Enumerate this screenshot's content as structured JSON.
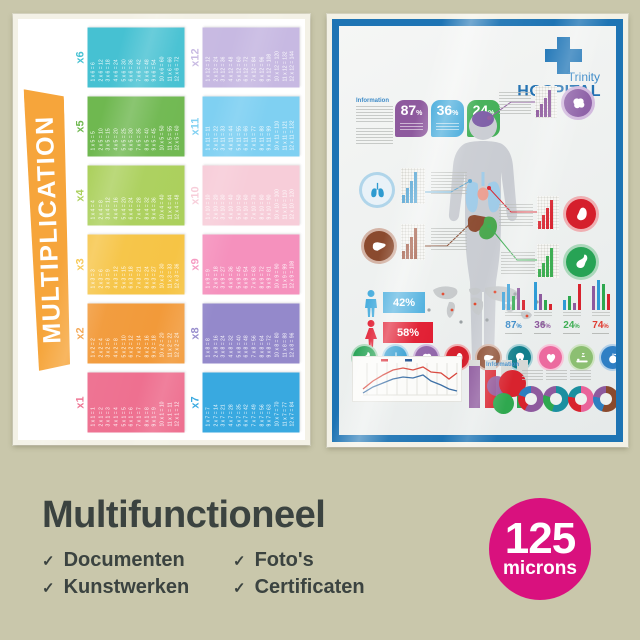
{
  "colors": {
    "background": "#c9c7ab",
    "text_dark": "#3b4340",
    "badge_pink": "#d9117e",
    "ribbon_orange": "#f6a53b",
    "hospital_blue": "#1e74b4"
  },
  "left_poster": {
    "title": "MULTIPLICATION",
    "tables": [
      {
        "label": "x1",
        "color": "#ee7090",
        "entries": [
          "1 x 1 = 1",
          "2 x 1 = 2",
          "3 x 1 = 3",
          "4 x 1 = 4",
          "5 x 1 = 5",
          "6 x 1 = 6",
          "7 x 1 = 7",
          "8 x 1 = 8",
          "9 x 1 = 9",
          "10 x 1 = 10",
          "11 x 1 = 11",
          "12 x 1 = 12"
        ]
      },
      {
        "label": "x2",
        "color": "#f29a3a",
        "entries": [
          "1 x 2 = 2",
          "2 x 2 = 4",
          "3 x 2 = 6",
          "4 x 2 = 8",
          "5 x 2 = 10",
          "6 x 2 = 12",
          "7 x 2 = 14",
          "8 x 2 = 16",
          "9 x 2 = 18",
          "10 x 2 = 20",
          "11 x 2 = 22",
          "12 x 2 = 24"
        ]
      },
      {
        "label": "x3",
        "color": "#f6c445",
        "entries": [
          "1 x 3 = 3",
          "2 x 3 = 6",
          "3 x 3 = 9",
          "4 x 3 = 12",
          "5 x 3 = 15",
          "6 x 3 = 18",
          "7 x 3 = 21",
          "8 x 3 = 24",
          "9 x 3 = 27",
          "10 x 3 = 30",
          "11 x 3 = 33",
          "12 x 3 = 36"
        ]
      },
      {
        "label": "x4",
        "color": "#abd05c",
        "entries": [
          "1 x 4 = 4",
          "2 x 4 = 8",
          "3 x 4 = 12",
          "4 x 4 = 16",
          "5 x 4 = 20",
          "6 x 4 = 24",
          "7 x 4 = 28",
          "8 x 4 = 32",
          "9 x 4 = 36",
          "10 x 4 = 40",
          "11 x 4 = 44",
          "12 x 4 = 48"
        ]
      },
      {
        "label": "x5",
        "color": "#6fb850",
        "entries": [
          "1 x 5 = 5",
          "2 x 5 = 10",
          "3 x 5 = 15",
          "4 x 5 = 20",
          "5 x 5 = 25",
          "6 x 5 = 30",
          "7 x 5 = 35",
          "8 x 5 = 40",
          "9 x 5 = 45",
          "10 x 5 = 50",
          "11 x 5 = 55",
          "12 x 5 = 60"
        ]
      },
      {
        "label": "x6",
        "color": "#46c1d2",
        "entries": [
          "1 x 6 = 6",
          "2 x 6 = 12",
          "3 x 6 = 18",
          "4 x 6 = 24",
          "5 x 6 = 30",
          "6 x 6 = 36",
          "7 x 6 = 42",
          "8 x 6 = 48",
          "9 x 6 = 54",
          "10 x 6 = 60",
          "11 x 6 = 66",
          "12 x 6 = 72"
        ]
      },
      {
        "label": "x7",
        "color": "#39a9e0",
        "entries": [
          "1 x 7 = 7",
          "2 x 7 = 14",
          "3 x 7 = 21",
          "4 x 7 = 28",
          "5 x 7 = 35",
          "6 x 7 = 42",
          "7 x 7 = 49",
          "8 x 7 = 56",
          "9 x 7 = 63",
          "10 x 7 = 70",
          "11 x 7 = 77",
          "12 x 7 = 84"
        ]
      },
      {
        "label": "x8",
        "color": "#9489cb",
        "entries": [
          "1 x 8 = 8",
          "2 x 8 = 16",
          "3 x 8 = 24",
          "4 x 8 = 32",
          "5 x 8 = 40",
          "6 x 8 = 48",
          "7 x 8 = 56",
          "8 x 8 = 64",
          "9 x 8 = 72",
          "10 x 8 = 80",
          "11 x 8 = 88",
          "12 x 8 = 96"
        ]
      },
      {
        "label": "x9",
        "color": "#f591bd",
        "entries": [
          "1 x 9 = 9",
          "2 x 9 = 18",
          "3 x 9 = 27",
          "4 x 9 = 36",
          "5 x 9 = 45",
          "6 x 9 = 54",
          "7 x 9 = 63",
          "8 x 9 = 72",
          "9 x 9 = 81",
          "10 x 9 = 90",
          "11 x 9 = 99",
          "12 x 9 = 108"
        ]
      },
      {
        "label": "x10",
        "color": "#f7cdd9",
        "entries": [
          "1 x 10 = 10",
          "2 x 10 = 20",
          "3 x 10 = 30",
          "4 x 10 = 40",
          "5 x 10 = 50",
          "6 x 10 = 60",
          "7 x 10 = 70",
          "8 x 10 = 80",
          "9 x 10 = 90",
          "10 x 10 = 100",
          "11 x 10 = 110",
          "12 x 10 = 120"
        ]
      },
      {
        "label": "x11",
        "color": "#7fd0f2",
        "entries": [
          "1 x 11 = 11",
          "2 x 11 = 22",
          "3 x 11 = 33",
          "4 x 11 = 44",
          "5 x 11 = 55",
          "6 x 11 = 66",
          "7 x 11 = 77",
          "8 x 11 = 88",
          "9 x 11 = 99",
          "10 x 11 = 110",
          "11 x 11 = 121",
          "12 x 11 = 132"
        ]
      },
      {
        "label": "x12",
        "color": "#c7b9e2",
        "entries": [
          "1 x 12 = 12",
          "2 x 12 = 24",
          "3 x 12 = 36",
          "4 x 12 = 48",
          "5 x 12 = 60",
          "6 x 12 = 72",
          "7 x 12 = 84",
          "8 x 12 = 96",
          "9 x 12 = 108",
          "10 x 12 = 120",
          "11 x 12 = 132",
          "12 x 12 = 144"
        ]
      }
    ]
  },
  "right_poster": {
    "brand": {
      "name": "Trinity",
      "type": "HOSPITAL"
    },
    "info_heading": "Information",
    "info_heading_2": "Information",
    "stat_badges": [
      {
        "value": "87",
        "unit": "%",
        "color": "#8e5a9e"
      },
      {
        "value": "36",
        "unit": "%",
        "color": "#35a3d8"
      },
      {
        "value": "24",
        "unit": "%",
        "color": "#3fae54"
      }
    ],
    "gender": [
      {
        "value": "42%",
        "color": "#4aaede"
      },
      {
        "value": "58%",
        "color": "#e0162b"
      }
    ],
    "bar_groups": [
      {
        "value": "87",
        "unit": "%",
        "color": "#2e83c4"
      },
      {
        "value": "36",
        "unit": "%",
        "color": "#8e5a9e"
      },
      {
        "value": "24",
        "unit": "%",
        "color": "#3fae54"
      },
      {
        "value": "74",
        "unit": "%",
        "color": "#e03c31"
      }
    ],
    "organ_icons": [
      {
        "name": "stomach",
        "color": "#27a355",
        "ring": "#abd8bb"
      },
      {
        "name": "lungs",
        "color": "#2e9bd0",
        "ring": "#b0d5ea"
      },
      {
        "name": "brain",
        "color": "#8f63a8",
        "ring": "#d2bade"
      },
      {
        "name": "kidney",
        "color": "#d51f2c",
        "ring": "#efafb2"
      },
      {
        "name": "liver",
        "color": "#8a4a2e",
        "ring": "#d4b4a6"
      },
      {
        "name": "tooth",
        "color": "#127f8c",
        "ring": "#a6d0d6"
      },
      {
        "name": "heart",
        "color": "#ec6b9f",
        "ring": "#f7c6da"
      },
      {
        "name": "sleep",
        "color": "#8cbf72",
        "ring": "#cfe4c2"
      },
      {
        "name": "apple",
        "color": "#2f7fc4",
        "ring": "#b1cfe8"
      }
    ]
  },
  "caption": {
    "title": "Multifunctioneel",
    "check": "✓",
    "column1": [
      "Documenten",
      "Kunstwerken"
    ],
    "column2": [
      "Foto's",
      "Certificaten"
    ]
  },
  "badge": {
    "value": "125",
    "unit": "microns"
  }
}
